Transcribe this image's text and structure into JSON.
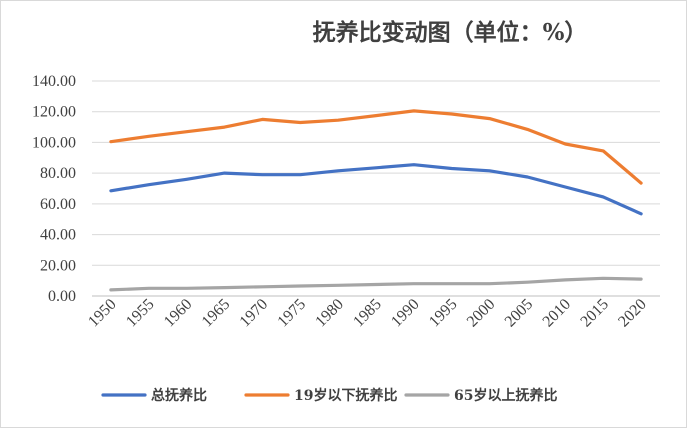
{
  "chart_data": {
    "type": "line",
    "title": "抚养比变动图（单位：%）",
    "xlabel": "",
    "ylabel": "",
    "ylim": [
      0,
      140
    ],
    "yticks": [
      "0.00",
      "20.00",
      "40.00",
      "60.00",
      "80.00",
      "100.00",
      "120.00",
      "140.00"
    ],
    "grid": true,
    "legend_position": "bottom",
    "x": [
      "1950",
      "1955",
      "1960",
      "1965",
      "1970",
      "1975",
      "1980",
      "1985",
      "1990",
      "1995",
      "2000",
      "2005",
      "2010",
      "2015",
      "2020"
    ],
    "series": [
      {
        "name": "总抚养比",
        "color": "#4472C4",
        "values": [
          68.5,
          72.5,
          76,
          80,
          79,
          79,
          81.5,
          83.5,
          85.5,
          83,
          81.5,
          77.5,
          71,
          64.5,
          53.5
        ]
      },
      {
        "name": "19岁以下抚养比",
        "color": "#ED7D31",
        "values": [
          100.5,
          104,
          107,
          110,
          115,
          113,
          114.5,
          117.5,
          120.5,
          118.5,
          115.5,
          108.5,
          99,
          94.5,
          73.5
        ]
      },
      {
        "name": "65岁以上抚养比",
        "color": "#A5A5A5",
        "values": [
          4,
          5,
          5,
          5.5,
          6,
          6.5,
          7,
          7.5,
          8,
          8,
          8,
          9,
          10.5,
          11.5,
          11
        ]
      }
    ]
  }
}
